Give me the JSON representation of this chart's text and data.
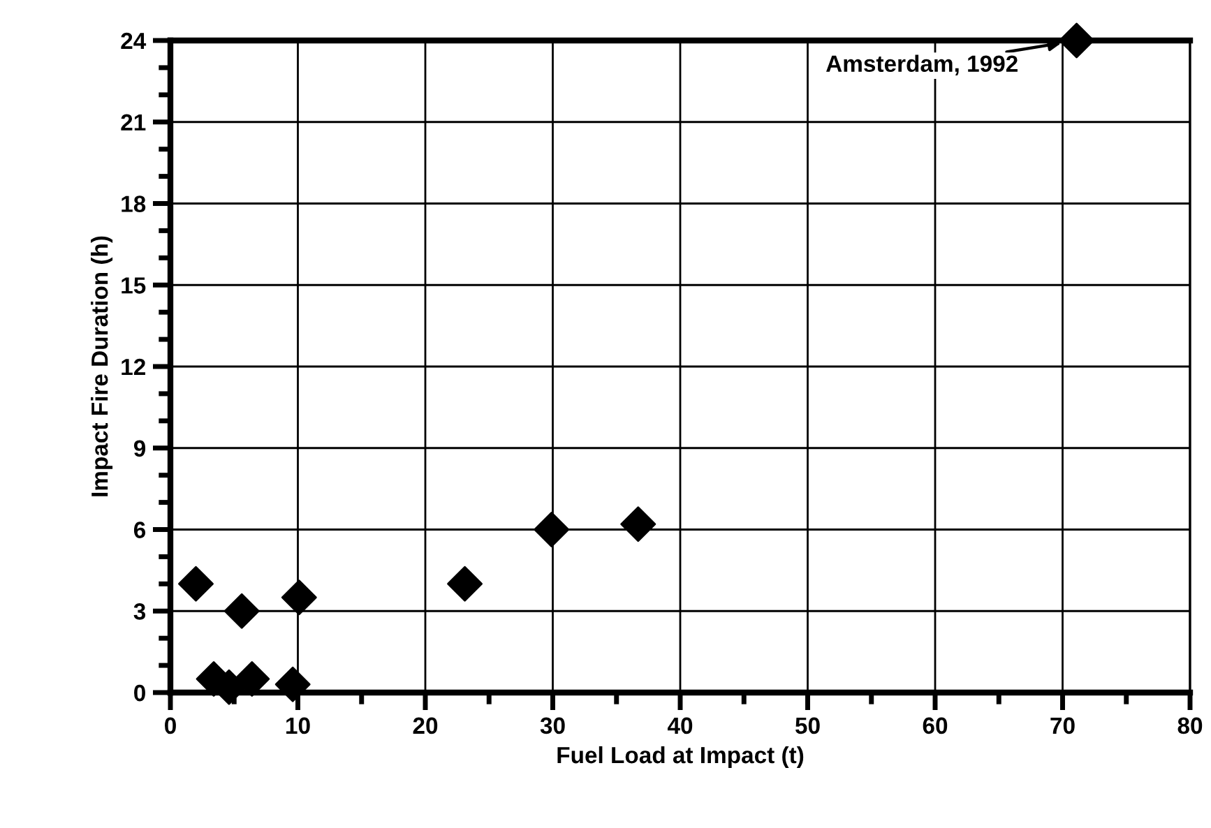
{
  "chart_data": {
    "type": "scatter",
    "xlabel": "Fuel Load at Impact (t)",
    "ylabel": "Impact Fire Duration (h)",
    "x": [
      2,
      3.4,
      4.6,
      5.6,
      6.4,
      9.6,
      10.1,
      23.1,
      29.9,
      36.7,
      71.1
    ],
    "series": [
      {
        "color": "#000000",
        "values": [
          4.0,
          0.5,
          0.2,
          3.0,
          0.5,
          0.3,
          3.5,
          4.0,
          6.0,
          6.2,
          24.0
        ]
      }
    ],
    "marker": "diamond",
    "grid": true,
    "legend": false,
    "xlim": [
      0,
      80
    ],
    "xticks": [
      0,
      10,
      20,
      30,
      40,
      50,
      60,
      70,
      80
    ],
    "ylim": [
      0,
      24
    ],
    "yticks": [
      0,
      3,
      6,
      9,
      12,
      15,
      18,
      21,
      24
    ],
    "annotations": [
      {
        "text": "Amsterdam, 1992",
        "x": 71.1,
        "y": 24.0
      }
    ]
  }
}
